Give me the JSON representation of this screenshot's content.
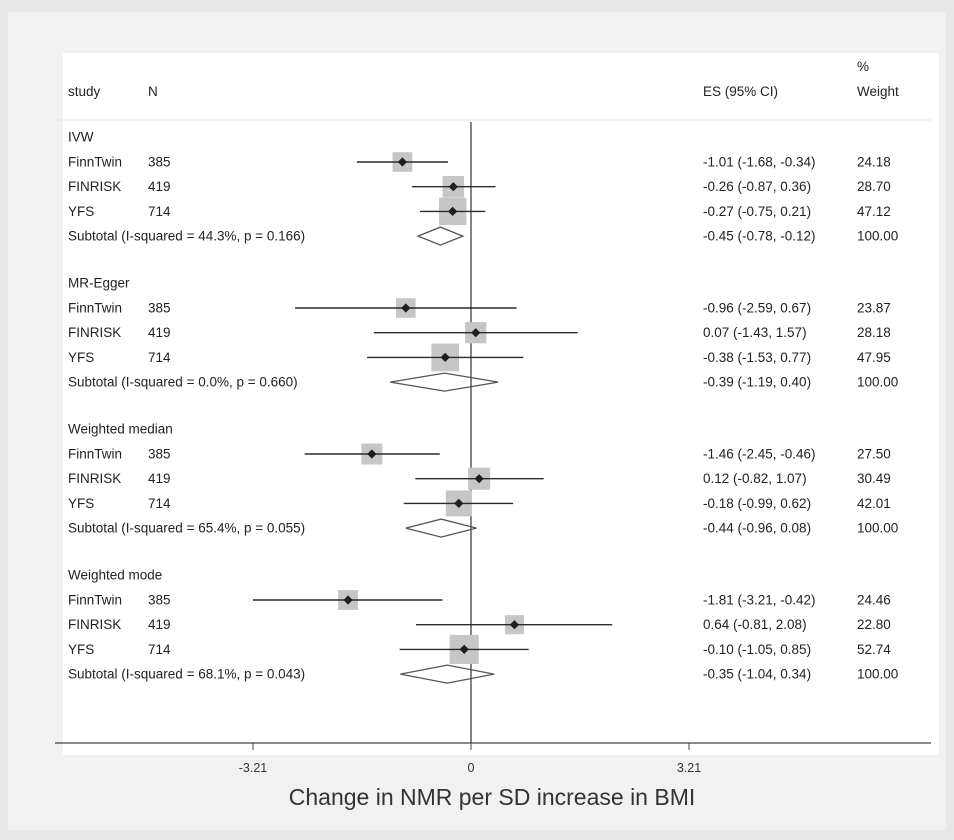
{
  "chart_data": {
    "type": "forest",
    "column_headers": {
      "study": "study",
      "n": "N",
      "es": "ES (95% CI)",
      "weight_line1": "%",
      "weight_line2": "Weight"
    },
    "xlabel": "Change in NMR per SD increase in BMI",
    "xlim": [
      -3.9,
      8.4
    ],
    "ticks": [
      {
        "value": -3.21,
        "label": "-3.21"
      },
      {
        "value": 0,
        "label": "0"
      },
      {
        "value": 3.21,
        "label": "3.21"
      }
    ],
    "reference_line": 0,
    "groups": [
      {
        "name": "IVW",
        "studies": [
          {
            "study": "FinnTwin",
            "n": "385",
            "es": -1.01,
            "lo": -1.68,
            "hi": -0.34,
            "es_text": "-1.01 (-1.68, -0.34)",
            "weight": 24.18,
            "weight_text": "24.18"
          },
          {
            "study": "FINRISK",
            "n": "419",
            "es": -0.26,
            "lo": -0.87,
            "hi": 0.36,
            "es_text": "-0.26 (-0.87, 0.36)",
            "weight": 28.7,
            "weight_text": "28.70"
          },
          {
            "study": "YFS",
            "n": "714",
            "es": -0.27,
            "lo": -0.75,
            "hi": 0.21,
            "es_text": "-0.27 (-0.75, 0.21)",
            "weight": 47.12,
            "weight_text": "47.12"
          }
        ],
        "subtotal": {
          "label": "Subtotal  (I-squared = 44.3%, p = 0.166)",
          "es": -0.45,
          "lo": -0.78,
          "hi": -0.12,
          "es_text": "-0.45 (-0.78, -0.12)",
          "weight_text": "100.00"
        }
      },
      {
        "name": "MR-Egger",
        "studies": [
          {
            "study": "FinnTwin",
            "n": "385",
            "es": -0.96,
            "lo": -2.59,
            "hi": 0.67,
            "es_text": "-0.96 (-2.59, 0.67)",
            "weight": 23.87,
            "weight_text": "23.87"
          },
          {
            "study": "FINRISK",
            "n": "419",
            "es": 0.07,
            "lo": -1.43,
            "hi": 1.57,
            "es_text": "0.07 (-1.43, 1.57)",
            "weight": 28.18,
            "weight_text": "28.18"
          },
          {
            "study": "YFS",
            "n": "714",
            "es": -0.38,
            "lo": -1.53,
            "hi": 0.77,
            "es_text": "-0.38 (-1.53, 0.77)",
            "weight": 47.95,
            "weight_text": "47.95"
          }
        ],
        "subtotal": {
          "label": "Subtotal  (I-squared = 0.0%, p = 0.660)",
          "es": -0.39,
          "lo": -1.19,
          "hi": 0.4,
          "es_text": "-0.39 (-1.19, 0.40)",
          "weight_text": "100.00"
        }
      },
      {
        "name": "Weighted median",
        "studies": [
          {
            "study": "FinnTwin",
            "n": "385",
            "es": -1.46,
            "lo": -2.45,
            "hi": -0.46,
            "es_text": "-1.46 (-2.45, -0.46)",
            "weight": 27.5,
            "weight_text": "27.50"
          },
          {
            "study": "FINRISK",
            "n": "419",
            "es": 0.12,
            "lo": -0.82,
            "hi": 1.07,
            "es_text": "0.12 (-0.82, 1.07)",
            "weight": 30.49,
            "weight_text": "30.49"
          },
          {
            "study": "YFS",
            "n": "714",
            "es": -0.18,
            "lo": -0.99,
            "hi": 0.62,
            "es_text": "-0.18 (-0.99, 0.62)",
            "weight": 42.01,
            "weight_text": "42.01"
          }
        ],
        "subtotal": {
          "label": "Subtotal  (I-squared = 65.4%, p = 0.055)",
          "es": -0.44,
          "lo": -0.96,
          "hi": 0.08,
          "es_text": "-0.44 (-0.96, 0.08)",
          "weight_text": "100.00"
        }
      },
      {
        "name": "Weighted mode",
        "studies": [
          {
            "study": "FinnTwin",
            "n": "385",
            "es": -1.81,
            "lo": -3.21,
            "hi": -0.42,
            "es_text": "-1.81 (-3.21, -0.42)",
            "weight": 24.46,
            "weight_text": "24.46"
          },
          {
            "study": "FINRISK",
            "n": "419",
            "es": 0.64,
            "lo": -0.81,
            "hi": 2.08,
            "es_text": "0.64 (-0.81, 2.08)",
            "weight": 22.8,
            "weight_text": "22.80"
          },
          {
            "study": "YFS",
            "n": "714",
            "es": -0.1,
            "lo": -1.05,
            "hi": 0.85,
            "es_text": "-0.10 (-1.05, 0.85)",
            "weight": 52.74,
            "weight_text": "52.74"
          }
        ],
        "subtotal": {
          "label": "Subtotal  (I-squared = 68.1%, p = 0.043)",
          "es": -0.35,
          "lo": -1.04,
          "hi": 0.34,
          "es_text": "-0.35 (-1.04, 0.34)",
          "weight_text": "100.00"
        }
      }
    ],
    "colors": {
      "weight_box": "#c6c6c6",
      "point": "#1e1e1e",
      "line": "#2a2a2a",
      "diamond_stroke": "#555555",
      "background": "#f1f1f1",
      "plot_background": "#ffffff"
    }
  }
}
